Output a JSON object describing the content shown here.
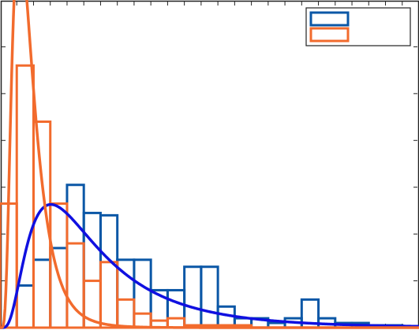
{
  "chart_data": {
    "type": "bar",
    "title": "",
    "xlabel": "",
    "ylabel": "",
    "xlim": [
      0,
      25
    ],
    "ylim": [
      0,
      7
    ],
    "grid": false,
    "legend_position": "top-right",
    "bin_width": 1,
    "bin_starts": [
      0,
      1,
      2,
      3,
      4,
      5,
      6,
      7,
      8,
      9,
      10,
      11,
      12,
      13,
      14,
      15,
      16,
      17,
      18,
      19,
      20,
      21,
      22,
      23,
      24
    ],
    "series": [
      {
        "legend_label": "",
        "color": "#0b57a6",
        "kind": "histogram",
        "values": [
          0,
          0.9,
          1.45,
          1.7,
          3.05,
          2.45,
          2.4,
          1.45,
          1.45,
          0.8,
          0.8,
          1.3,
          1.3,
          0.45,
          0.2,
          0.2,
          0.1,
          0.2,
          0.6,
          0.2,
          0.1,
          0.1,
          0.05,
          0.05,
          0
        ]
      },
      {
        "legend_label": "",
        "color": "#f26b2d",
        "kind": "histogram",
        "values": [
          2.65,
          5.6,
          4.4,
          2.65,
          1.8,
          1.0,
          1.4,
          0.6,
          0.3,
          0.15,
          0.2,
          0.05,
          0.05,
          0.05,
          0.05,
          0,
          0,
          0,
          0,
          0,
          0,
          0,
          0,
          0,
          0
        ]
      }
    ],
    "fits": [
      {
        "color": "#1010e0",
        "kind": "lognormal-pdf",
        "mu": 1.6,
        "sigma": 0.7,
        "scale": 17.9
      },
      {
        "color": "#f26b2d",
        "kind": "lognormal-pdf",
        "mu": 0.45,
        "sigma": 0.55,
        "scale": 15.47
      }
    ]
  }
}
